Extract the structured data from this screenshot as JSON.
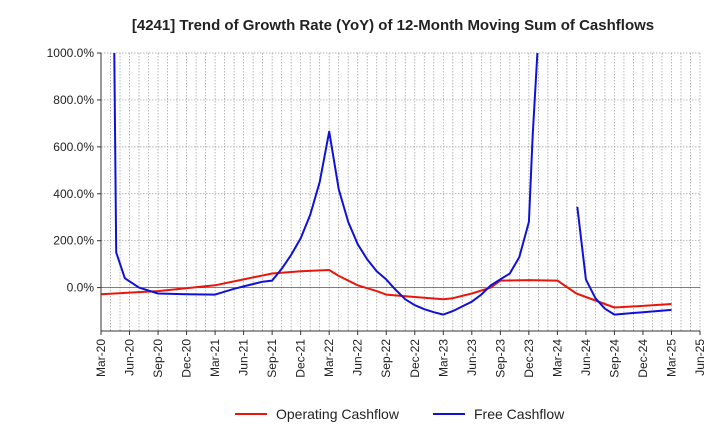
{
  "chart_data": {
    "type": "line",
    "title": "[4241]  Trend of Growth Rate (YoY) of 12-Month Moving Sum of Cashflows",
    "xlabel": "",
    "ylabel": "",
    "ylim": [
      -185,
      1000
    ],
    "y_ticks": [
      1000,
      800,
      600,
      400,
      200,
      0
    ],
    "y_tick_labels": [
      "1000.0%",
      "800.0%",
      "600.0%",
      "400.0%",
      "200.0%",
      "0.0%"
    ],
    "x_tick_labels": [
      "Mar-20",
      "Jun-20",
      "Sep-20",
      "Dec-20",
      "Mar-21",
      "Jun-21",
      "Sep-21",
      "Dec-21",
      "Mar-22",
      "Jun-22",
      "Sep-22",
      "Dec-22",
      "Mar-23",
      "Jun-23",
      "Sep-23",
      "Dec-23",
      "Mar-24",
      "Jun-24",
      "Sep-24",
      "Dec-24",
      "Mar-25",
      "Jun-25"
    ],
    "x_tick_months": [
      0,
      3,
      6,
      9,
      12,
      15,
      18,
      21,
      24,
      27,
      30,
      33,
      36,
      39,
      42,
      45,
      48,
      51,
      54,
      57,
      60,
      63
    ],
    "x_range_months": [
      0,
      63
    ],
    "grid": true,
    "legend_position": "bottom-center",
    "series": [
      {
        "name": "Operating Cashflow",
        "color": "#e8170e",
        "points": [
          [
            0,
            -28
          ],
          [
            6,
            -15
          ],
          [
            12,
            10
          ],
          [
            15,
            35
          ],
          [
            18,
            60
          ],
          [
            21,
            70
          ],
          [
            24,
            75
          ],
          [
            25,
            50
          ],
          [
            27,
            10
          ],
          [
            29,
            -15
          ],
          [
            30,
            -30
          ],
          [
            33,
            -40
          ],
          [
            36,
            -50
          ],
          [
            37,
            -45
          ],
          [
            39,
            -25
          ],
          [
            41,
            0
          ],
          [
            42,
            30
          ],
          [
            45,
            32
          ],
          [
            48,
            30
          ],
          [
            50,
            -25
          ],
          [
            52,
            -55
          ],
          [
            54,
            -85
          ],
          [
            57,
            -78
          ],
          [
            60,
            -70
          ]
        ]
      },
      {
        "name": "Free Cashflow",
        "color": "#0f12d6",
        "segments": [
          [
            [
              1.4,
              1000
            ],
            [
              1.6,
              150
            ],
            [
              2.5,
              40
            ],
            [
              4,
              0
            ],
            [
              6,
              -25
            ],
            [
              9,
              -28
            ],
            [
              12,
              -30
            ],
            [
              14,
              -5
            ],
            [
              15,
              5
            ],
            [
              17,
              25
            ],
            [
              18,
              30
            ],
            [
              19,
              80
            ],
            [
              20,
              140
            ],
            [
              21,
              210
            ],
            [
              22,
              310
            ],
            [
              23,
              450
            ],
            [
              24,
              665
            ],
            [
              25,
              420
            ],
            [
              26,
              280
            ],
            [
              27,
              185
            ],
            [
              28,
              120
            ],
            [
              29,
              70
            ],
            [
              30,
              35
            ],
            [
              31,
              -10
            ],
            [
              32,
              -50
            ],
            [
              33,
              -75
            ],
            [
              34,
              -92
            ],
            [
              35,
              -105
            ],
            [
              36,
              -115
            ],
            [
              37,
              -100
            ],
            [
              38,
              -80
            ],
            [
              39,
              -60
            ],
            [
              40,
              -30
            ],
            [
              41,
              10
            ],
            [
              42,
              35
            ],
            [
              43,
              60
            ],
            [
              44,
              130
            ],
            [
              45,
              280
            ],
            [
              45.4,
              650
            ],
            [
              45.9,
              1000
            ]
          ],
          [
            [
              50.1,
              345
            ],
            [
              51,
              35
            ],
            [
              52,
              -45
            ],
            [
              53,
              -90
            ],
            [
              54,
              -115
            ],
            [
              57,
              -105
            ],
            [
              60,
              -95
            ]
          ]
        ]
      }
    ]
  }
}
